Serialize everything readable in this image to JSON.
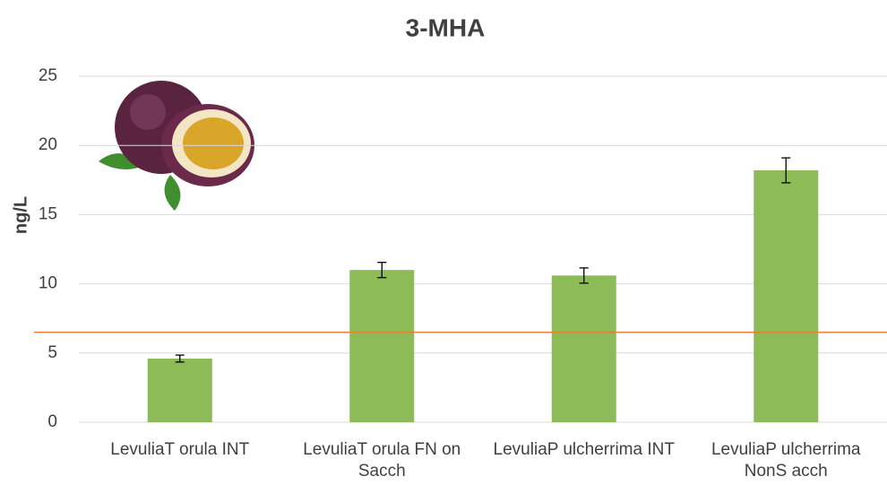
{
  "chart_data": {
    "type": "bar",
    "title": "3-MHA",
    "ylabel": "ng/L",
    "categories": [
      "LevuliaT orula INT",
      "LevuliaT orula FN on Sacch",
      "LevuliaP ulcherrima INT",
      "LevuliaP ulcherrima NonS acch"
    ],
    "values": [
      4.6,
      11.0,
      10.6,
      18.2
    ],
    "errors": [
      0.25,
      0.55,
      0.55,
      0.9
    ],
    "color": "#8cbb58",
    "threshold": 6.5,
    "threshold_color": "#ed7d31",
    "ylim": [
      0,
      25
    ],
    "yticks": [
      0,
      5,
      10,
      15,
      20,
      25
    ],
    "grid": true
  }
}
